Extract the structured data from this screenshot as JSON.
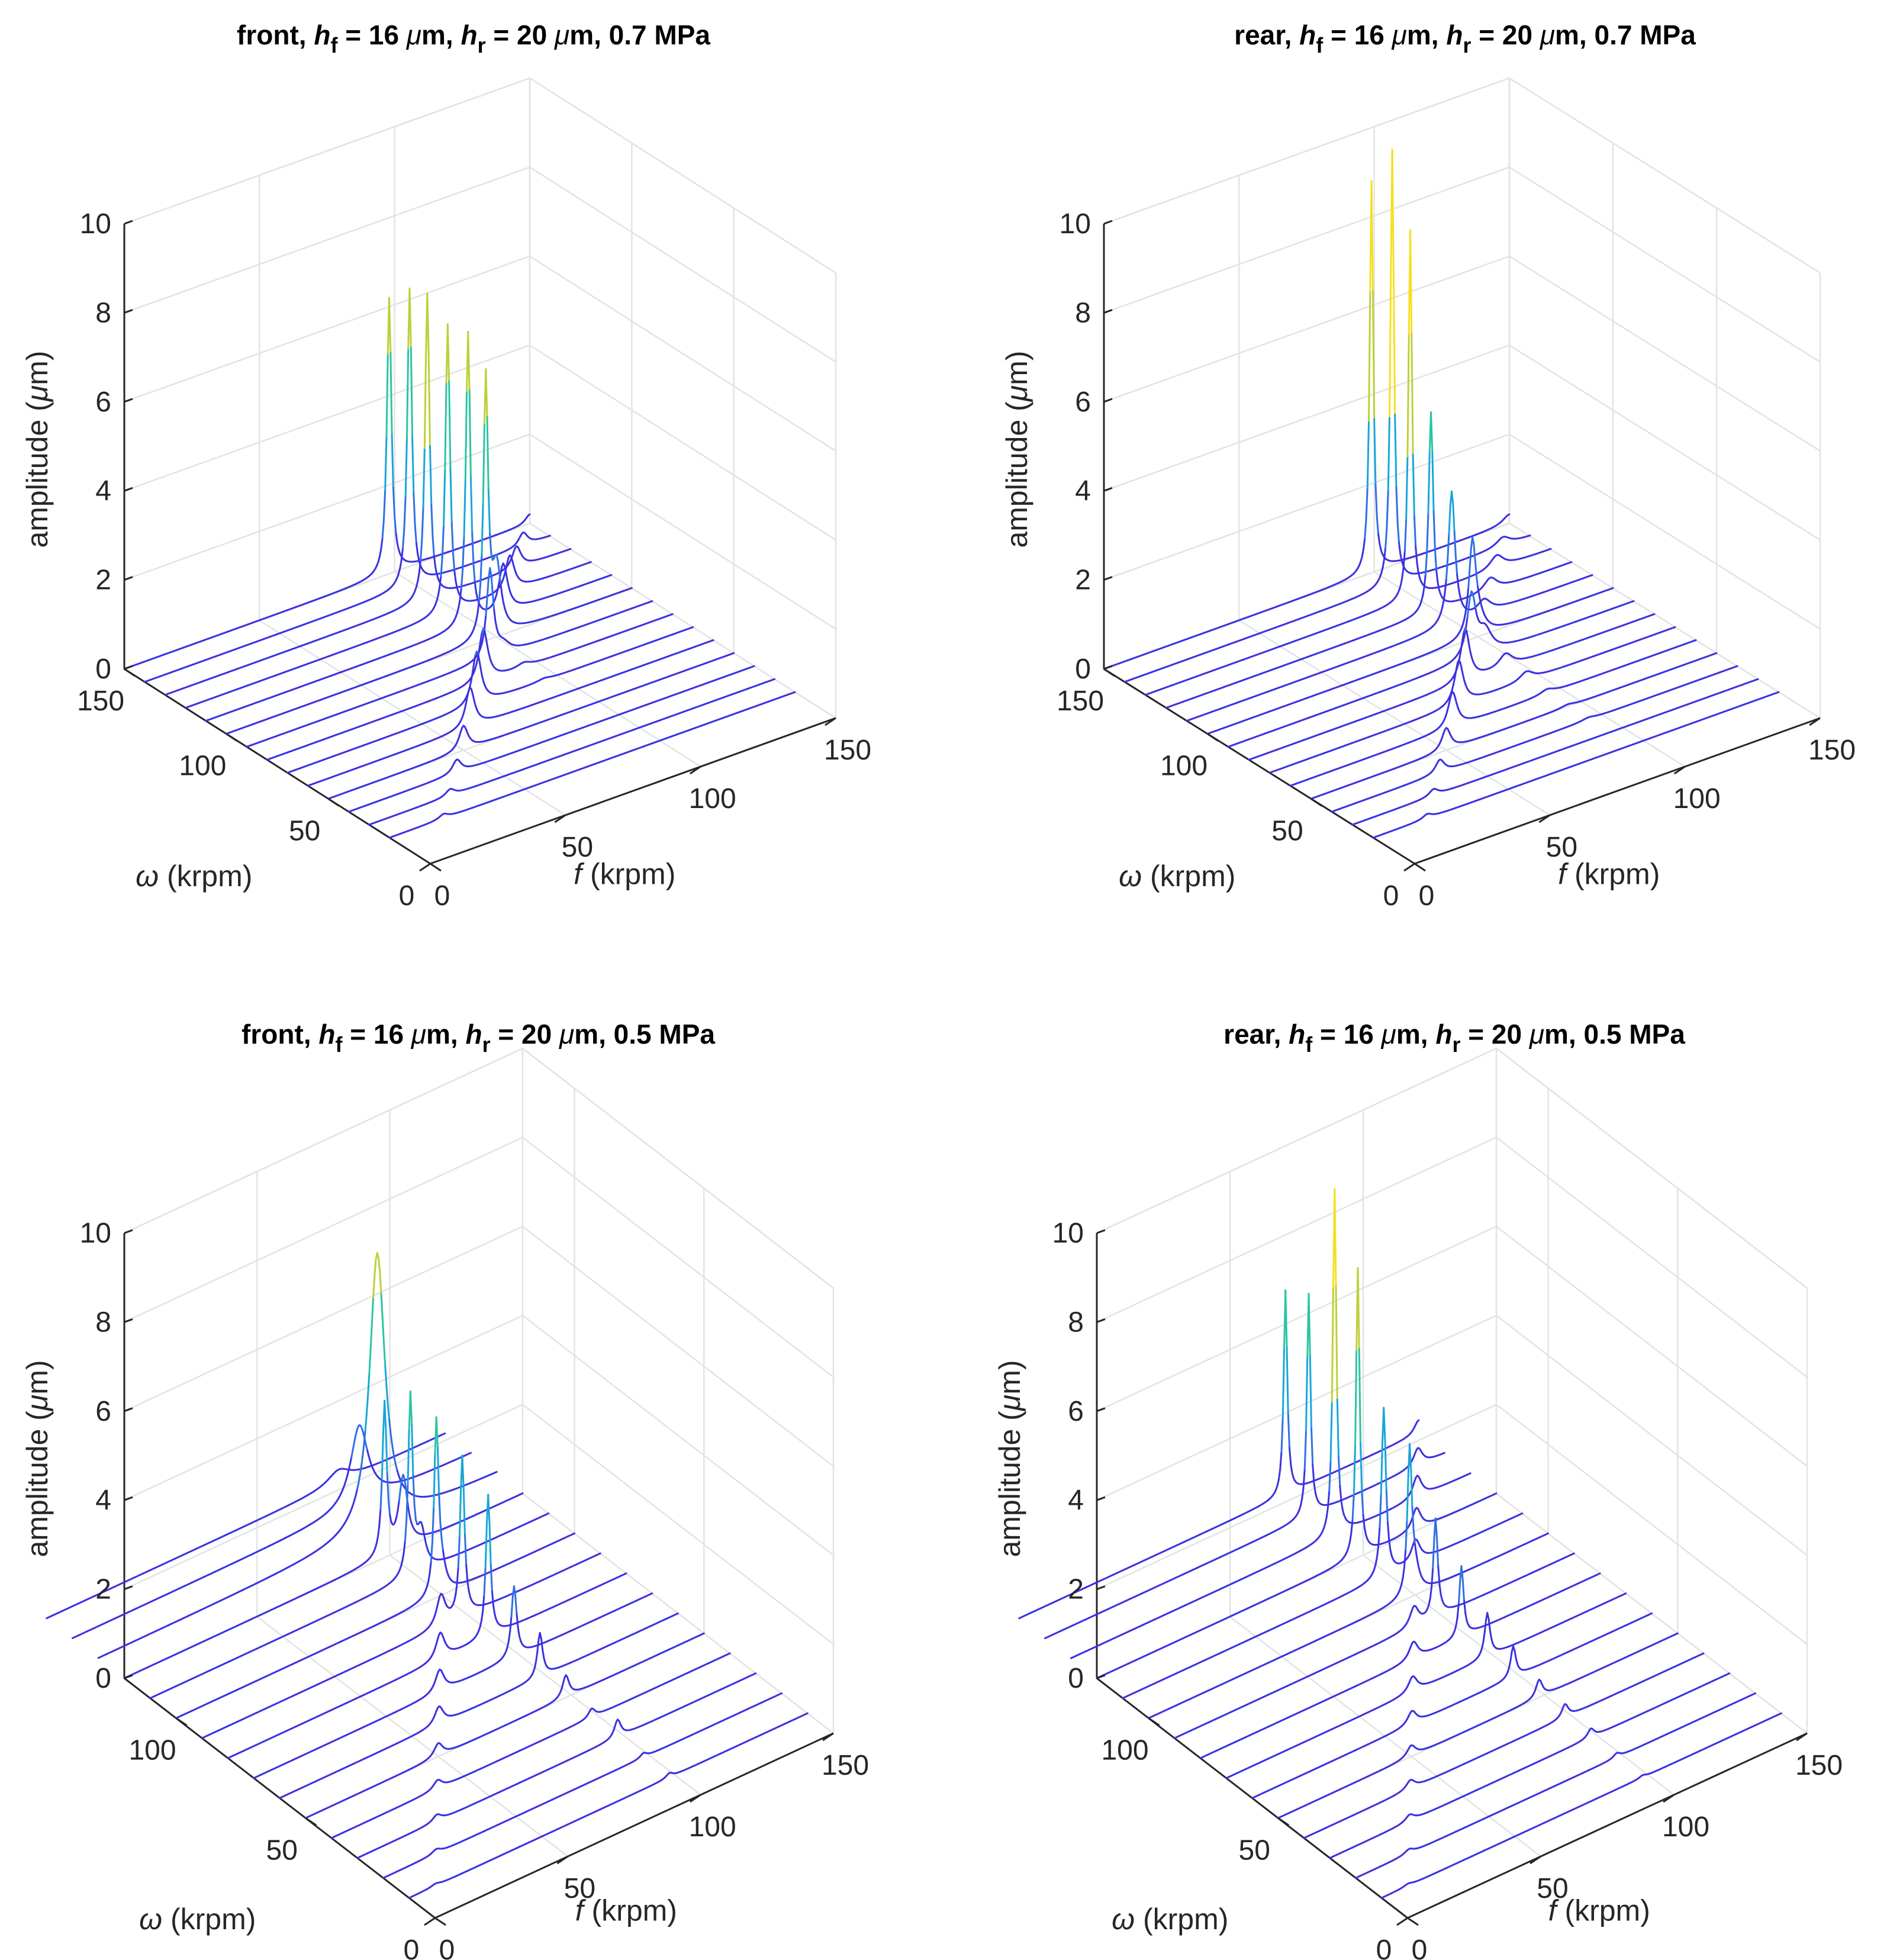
{
  "figure": {
    "panel_count": 4
  },
  "chart_data": [
    {
      "type": "waterfall",
      "title_parts": {
        "prefix": "front,",
        "h_f_sym": "h",
        "h_f_sub": "f",
        "h_f_val": "= 16",
        "h_r_sym": "h",
        "h_r_sub": "r",
        "h_r_val": "= 20",
        "mu": "μ",
        "m_unit": "m,",
        "pressure": "0.7 MPa"
      },
      "xlabel": {
        "var": "f",
        "unit": " (krpm)"
      },
      "ylabel": {
        "var": "ω",
        "unit": " (krpm)"
      },
      "zlabel": {
        "text": "amplitude (",
        "mu": "μ",
        "unit": "m)"
      },
      "xlim": [
        0,
        150
      ],
      "ylim": [
        0,
        150
      ],
      "zlim": [
        0,
        10
      ],
      "xticks": [
        "0",
        "50",
        "100",
        "150"
      ],
      "yticks": [
        "0",
        "50",
        "100",
        "150"
      ],
      "zticks": [
        "0",
        "2",
        "4",
        "6",
        "8",
        "10"
      ],
      "omega": [
        20,
        30,
        40,
        50,
        60,
        70,
        80,
        90,
        100,
        110,
        120,
        130,
        140,
        150
      ],
      "f_range": [
        0,
        150
      ],
      "series": [
        {
          "omega": 20,
          "peaks": [
            [
              20,
              0.1,
              2
            ],
            [
              95,
              0.0,
              3
            ]
          ]
        },
        {
          "omega": 30,
          "peaks": [
            [
              30,
              0.15,
              2
            ],
            [
              95,
              0.0,
              3
            ]
          ]
        },
        {
          "omega": 40,
          "peaks": [
            [
              40,
              0.3,
              2
            ],
            [
              95,
              0.0,
              3
            ]
          ]
        },
        {
          "omega": 50,
          "peaks": [
            [
              50,
              0.55,
              2
            ],
            [
              95,
              0.0,
              3
            ]
          ]
        },
        {
          "omega": 60,
          "peaks": [
            [
              60,
              0.9,
              2
            ],
            [
              95,
              0.0,
              3
            ]
          ]
        },
        {
          "omega": 70,
          "peaks": [
            [
              70,
              1.2,
              2
            ],
            [
              95,
              0.05,
              3
            ]
          ]
        },
        {
          "omega": 80,
          "peaks": [
            [
              80,
              1.2,
              2
            ],
            [
              95,
              0.1,
              3
            ]
          ]
        },
        {
          "omega": 90,
          "peaks": [
            [
              90,
              2.0,
              1.5
            ],
            [
              95,
              0.2,
              3
            ]
          ]
        },
        {
          "omega": 100,
          "peaks": [
            [
              96,
              5.8,
              1
            ],
            [
              100,
              1.5,
              2
            ]
          ]
        },
        {
          "omega": 110,
          "peaks": [
            [
              97,
              6.6,
              1
            ],
            [
              110,
              1.1,
              2
            ]
          ]
        },
        {
          "omega": 120,
          "peaks": [
            [
              97,
              6.5,
              1
            ],
            [
              120,
              0.8,
              2
            ]
          ]
        },
        {
          "omega": 130,
          "peaks": [
            [
              97,
              6.9,
              1
            ],
            [
              130,
              0.5,
              2
            ]
          ]
        },
        {
          "omega": 140,
          "peaks": [
            [
              98,
              6.7,
              1
            ],
            [
              140,
              0.3,
              2
            ]
          ]
        },
        {
          "omega": 150,
          "peaks": [
            [
              98,
              6.2,
              1
            ],
            [
              150,
              0.2,
              2
            ]
          ]
        }
      ]
    },
    {
      "type": "waterfall",
      "title_parts": {
        "prefix": "rear,",
        "h_f_sym": "h",
        "h_f_sub": "f",
        "h_f_val": "= 16",
        "h_r_sym": "h",
        "h_r_sub": "r",
        "h_r_val": "= 20",
        "mu": "μ",
        "m_unit": "m,",
        "pressure": "0.7 MPa"
      },
      "xlabel": {
        "var": "f",
        "unit": " (krpm)"
      },
      "ylabel": {
        "var": "ω",
        "unit": " (krpm)"
      },
      "zlabel": {
        "text": "amplitude (",
        "mu": "μ",
        "unit": "m)"
      },
      "xlim": [
        0,
        150
      ],
      "ylim": [
        0,
        150
      ],
      "zlim": [
        0,
        10
      ],
      "xticks": [
        "0",
        "50",
        "100",
        "150"
      ],
      "yticks": [
        "0",
        "50",
        "100",
        "150"
      ],
      "zticks": [
        "0",
        "2",
        "4",
        "6",
        "8",
        "10"
      ],
      "omega": [
        20,
        30,
        40,
        50,
        60,
        70,
        80,
        90,
        100,
        110,
        120,
        130,
        140,
        150
      ],
      "f_range": [
        0,
        150
      ],
      "series": [
        {
          "omega": 20,
          "peaks": [
            [
              20,
              0.1,
              2
            ],
            [
              95,
              0.0,
              3
            ]
          ]
        },
        {
          "omega": 30,
          "peaks": [
            [
              30,
              0.15,
              2
            ],
            [
              95,
              0.0,
              3
            ]
          ]
        },
        {
          "omega": 40,
          "peaks": [
            [
              40,
              0.3,
              2
            ],
            [
              95,
              0.05,
              3
            ]
          ]
        },
        {
          "omega": 50,
          "peaks": [
            [
              50,
              0.5,
              2
            ],
            [
              95,
              0.05,
              3
            ]
          ]
        },
        {
          "omega": 60,
          "peaks": [
            [
              60,
              0.8,
              2
            ],
            [
              95,
              0.1,
              3
            ]
          ]
        },
        {
          "omega": 70,
          "peaks": [
            [
              70,
              1.0,
              2
            ],
            [
              95,
              0.2,
              3
            ]
          ]
        },
        {
          "omega": 80,
          "peaks": [
            [
              80,
              1.2,
              2
            ],
            [
              95,
              0.3,
              3
            ]
          ]
        },
        {
          "omega": 90,
          "peaks": [
            [
              90,
              1.4,
              2
            ],
            [
              95,
              0.5,
              3
            ]
          ]
        },
        {
          "omega": 100,
          "peaks": [
            [
              98,
              2.0,
              1.5
            ],
            [
              100,
              0.4,
              3
            ]
          ]
        },
        {
          "omega": 110,
          "peaks": [
            [
              98,
              3.0,
              1.5
            ],
            [
              110,
              0.3,
              3
            ]
          ]
        },
        {
          "omega": 120,
          "peaks": [
            [
              98,
              4.5,
              1
            ],
            [
              120,
              0.3,
              3
            ]
          ]
        },
        {
          "omega": 130,
          "peaks": [
            [
              98,
              8.3,
              0.8
            ],
            [
              130,
              0.3,
              3
            ]
          ]
        },
        {
          "omega": 140,
          "peaks": [
            [
              99,
              9.8,
              0.8
            ],
            [
              140,
              0.2,
              3
            ]
          ]
        },
        {
          "omega": 150,
          "peaks": [
            [
              99,
              8.8,
              0.8
            ],
            [
              150,
              0.2,
              3
            ]
          ]
        }
      ]
    },
    {
      "type": "waterfall",
      "title_parts": {
        "prefix": "front,",
        "h_f_sym": "h",
        "h_f_sub": "f",
        "h_f_val": "= 16",
        "h_r_sym": "h",
        "h_r_sub": "r",
        "h_r_val": "= 20",
        "mu": "μ",
        "m_unit": "m,",
        "pressure": "0.5 MPa"
      },
      "xlabel": {
        "var": "f",
        "unit": " (krpm)"
      },
      "ylabel": {
        "var": "ω",
        "unit": " (krpm)"
      },
      "zlabel": {
        "text": "amplitude (",
        "mu": "μ",
        "unit": "m)"
      },
      "xlim": [
        0,
        150
      ],
      "ylim": [
        0,
        120
      ],
      "zlim": [
        0,
        10
      ],
      "xticks": [
        "0",
        "50",
        "100",
        "150"
      ],
      "yticks": [
        "0",
        "50",
        "100"
      ],
      "zticks": [
        "0",
        "2",
        "4",
        "6",
        "8",
        "10"
      ],
      "omega": [
        10,
        20,
        30,
        40,
        50,
        60,
        70,
        80,
        90,
        100,
        110,
        120,
        130,
        140,
        150
      ],
      "f_range": [
        0,
        150
      ],
      "series": [
        {
          "omega": 10,
          "peaks": [
            [
              10,
              0.05,
              2
            ],
            [
              98,
              0.1,
              1.5
            ]
          ]
        },
        {
          "omega": 20,
          "peaks": [
            [
              20,
              0.1,
              2
            ],
            [
              98,
              0.1,
              1.5
            ]
          ]
        },
        {
          "omega": 30,
          "peaks": [
            [
              30,
              0.15,
              2
            ],
            [
              98,
              0.4,
              1.5
            ]
          ]
        },
        {
          "omega": 40,
          "peaks": [
            [
              40,
              0.2,
              2
            ],
            [
              98,
              0.2,
              1.5
            ]
          ]
        },
        {
          "omega": 50,
          "peaks": [
            [
              50,
              0.3,
              2
            ],
            [
              98,
              0.5,
              1.5
            ]
          ]
        },
        {
          "omega": 60,
          "peaks": [
            [
              60,
              0.4,
              2
            ],
            [
              98,
              1.0,
              1.2
            ]
          ]
        },
        {
          "omega": 70,
          "peaks": [
            [
              70,
              0.5,
              2
            ],
            [
              98,
              1.6,
              1.2
            ]
          ]
        },
        {
          "omega": 80,
          "peaks": [
            [
              80,
              0.6,
              2
            ],
            [
              98,
              3.2,
              1
            ]
          ]
        },
        {
          "omega": 90,
          "peaks": [
            [
              90,
              0.7,
              2
            ],
            [
              98,
              3.6,
              1
            ]
          ]
        },
        {
          "omega": 100,
          "peaks": [
            [
              100,
              0.5,
              2
            ],
            [
              98,
              3.8,
              1
            ]
          ]
        },
        {
          "omega": 110,
          "peaks": [
            [
              102,
              0.9,
              2
            ],
            [
              98,
              4.0,
              1
            ]
          ]
        },
        {
          "omega": 120,
          "peaks": [
            [
              105,
              1.6,
              2
            ],
            [
              98,
              3.4,
              1
            ]
          ]
        },
        {
          "omega": 130,
          "peaks": [
            [
              105,
              6.2,
              3.5
            ]
          ]
        },
        {
          "omega": 140,
          "peaks": [
            [
              108,
              1.8,
              4
            ]
          ]
        },
        {
          "omega": 150,
          "peaks": [
            [
              110,
              0.3,
              5
            ]
          ]
        }
      ]
    },
    {
      "type": "waterfall",
      "title_parts": {
        "prefix": "rear,",
        "h_f_sym": "h",
        "h_f_sub": "f",
        "h_f_val": "= 16",
        "h_r_sym": "h",
        "h_r_sub": "r",
        "h_r_val": "= 20",
        "mu": "μ",
        "m_unit": "m,",
        "pressure": "0.5 MPa"
      },
      "xlabel": {
        "var": "f",
        "unit": " (krpm)"
      },
      "ylabel": {
        "var": "ω",
        "unit": " (krpm)"
      },
      "zlabel": {
        "text": "amplitude (",
        "mu": "μ",
        "unit": "m)"
      },
      "xlim": [
        0,
        150
      ],
      "ylim": [
        0,
        120
      ],
      "zlim": [
        0,
        10
      ],
      "xticks": [
        "0",
        "50",
        "100",
        "150"
      ],
      "yticks": [
        "0",
        "50",
        "100"
      ],
      "zticks": [
        "0",
        "2",
        "4",
        "6",
        "8",
        "10"
      ],
      "omega": [
        10,
        20,
        30,
        40,
        50,
        60,
        70,
        80,
        90,
        100,
        110,
        120,
        130,
        140,
        150
      ],
      "f_range": [
        0,
        150
      ],
      "series": [
        {
          "omega": 10,
          "peaks": [
            [
              10,
              0.05,
              2
            ],
            [
              98,
              0.05,
              1.5
            ]
          ]
        },
        {
          "omega": 20,
          "peaks": [
            [
              20,
              0.1,
              2
            ],
            [
              98,
              0.1,
              1.5
            ]
          ]
        },
        {
          "omega": 30,
          "peaks": [
            [
              30,
              0.15,
              2
            ],
            [
              98,
              0.2,
              1.5
            ]
          ]
        },
        {
          "omega": 40,
          "peaks": [
            [
              40,
              0.2,
              2
            ],
            [
              98,
              0.3,
              1.5
            ]
          ]
        },
        {
          "omega": 50,
          "peaks": [
            [
              50,
              0.25,
              2
            ],
            [
              98,
              0.4,
              1.5
            ]
          ]
        },
        {
          "omega": 60,
          "peaks": [
            [
              60,
              0.3,
              2
            ],
            [
              98,
              0.7,
              1.2
            ]
          ]
        },
        {
          "omega": 70,
          "peaks": [
            [
              70,
              0.35,
              2
            ],
            [
              98,
              1.0,
              1.2
            ]
          ]
        },
        {
          "omega": 80,
          "peaks": [
            [
              80,
              0.4,
              2
            ],
            [
              98,
              1.6,
              1
            ]
          ]
        },
        {
          "omega": 90,
          "peaks": [
            [
              90,
              0.45,
              2
            ],
            [
              98,
              2.2,
              1
            ]
          ]
        },
        {
          "omega": 100,
          "peaks": [
            [
              100,
              0.5,
              2
            ],
            [
              98,
              3.2,
              1
            ]
          ]
        },
        {
          "omega": 110,
          "peaks": [
            [
              110,
              0.5,
              2
            ],
            [
              98,
              3.8,
              1
            ]
          ]
        },
        {
          "omega": 120,
          "peaks": [
            [
              120,
              0.5,
              2
            ],
            [
              98,
              6.5,
              0.8
            ]
          ]
        },
        {
          "omega": 130,
          "peaks": [
            [
              130,
              0.5,
              2
            ],
            [
              99,
              7.8,
              0.8
            ]
          ]
        },
        {
          "omega": 140,
          "peaks": [
            [
              140,
              0.4,
              2
            ],
            [
              99,
              5.0,
              0.8
            ]
          ]
        },
        {
          "omega": 150,
          "peaks": [
            [
              150,
              0.3,
              2
            ],
            [
              100,
              4.6,
              0.8
            ]
          ]
        }
      ]
    }
  ]
}
